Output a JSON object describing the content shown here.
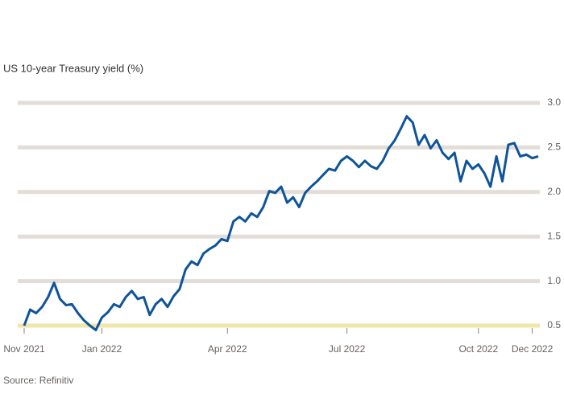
{
  "chart_data": {
    "type": "line",
    "title": "US 10-year Treasury yield (%)",
    "source": "Source: Refinitiv",
    "categories": [
      "Nov 2021",
      null,
      null,
      null,
      null,
      null,
      null,
      null,
      null,
      null,
      null,
      null,
      null,
      "Jan 2022",
      null,
      null,
      null,
      null,
      null,
      null,
      null,
      null,
      null,
      null,
      null,
      null,
      null,
      null,
      null,
      null,
      null,
      null,
      null,
      null,
      "Apr 2022",
      null,
      null,
      null,
      null,
      null,
      null,
      null,
      null,
      null,
      null,
      null,
      null,
      null,
      null,
      null,
      null,
      null,
      null,
      null,
      "Jul 2022",
      null,
      null,
      null,
      null,
      null,
      null,
      null,
      null,
      null,
      null,
      null,
      null,
      null,
      null,
      null,
      null,
      null,
      null,
      null,
      null,
      null,
      "Oct 2022",
      null,
      null,
      null,
      null,
      null,
      null,
      null,
      null,
      "Dec 2022",
      null
    ],
    "series": [
      {
        "name": "US 10-year yield",
        "color": "#0f5499",
        "values": [
          0.5,
          0.68,
          0.64,
          0.71,
          0.82,
          0.98,
          0.8,
          0.73,
          0.74,
          0.64,
          0.56,
          0.5,
          0.45,
          0.59,
          0.65,
          0.74,
          0.71,
          0.82,
          0.89,
          0.8,
          0.82,
          0.62,
          0.74,
          0.8,
          0.71,
          0.83,
          0.91,
          1.13,
          1.22,
          1.18,
          1.31,
          1.36,
          1.4,
          1.47,
          1.45,
          1.67,
          1.72,
          1.67,
          1.76,
          1.72,
          1.83,
          2.01,
          1.99,
          2.06,
          1.88,
          1.94,
          1.83,
          1.99,
          2.06,
          2.12,
          2.19,
          2.26,
          2.24,
          2.35,
          2.4,
          2.35,
          2.28,
          2.35,
          2.29,
          2.26,
          2.35,
          2.49,
          2.58,
          2.71,
          2.85,
          2.78,
          2.53,
          2.64,
          2.49,
          2.58,
          2.44,
          2.37,
          2.44,
          2.12,
          2.35,
          2.26,
          2.31,
          2.21,
          2.06,
          2.4,
          2.12,
          2.53,
          2.55,
          2.4,
          2.42,
          2.38,
          2.4
        ]
      }
    ],
    "ylim": [
      0.5,
      3.0
    ],
    "yticks": [
      {
        "value": 0.5,
        "label": "0.5"
      },
      {
        "value": 1.0,
        "label": "1.0"
      },
      {
        "value": 1.5,
        "label": "1.5"
      },
      {
        "value": 2.0,
        "label": "2.0"
      },
      {
        "value": 2.5,
        "label": "2.5"
      },
      {
        "value": 3.0,
        "label": "3.0"
      }
    ],
    "grid": true
  }
}
